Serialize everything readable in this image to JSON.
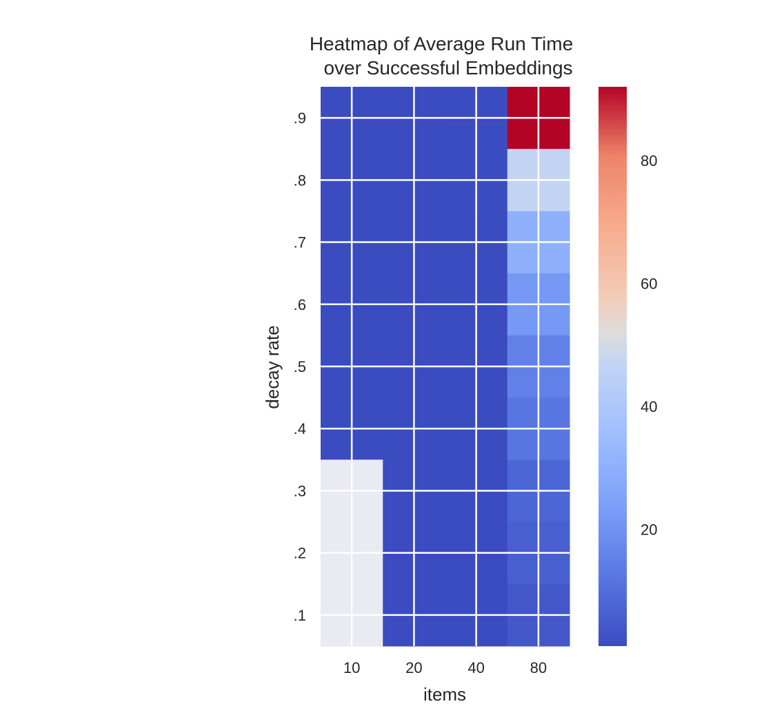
{
  "chart_data": {
    "type": "heatmap",
    "title_lines": [
      "Heatmap of Average Run Time",
      "over Successful Embeddings"
    ],
    "xlabel": "items",
    "ylabel": "decay rate",
    "x_categories": [
      "10",
      "20",
      "40",
      "80"
    ],
    "y_categories": [
      ".9",
      ".8",
      ".7",
      ".6",
      ".5",
      ".4",
      ".3",
      ".2",
      ".1"
    ],
    "values": [
      [
        1.0,
        1.0,
        1.3,
        92.0
      ],
      [
        1.0,
        1.0,
        1.2,
        47.0
      ],
      [
        1.0,
        1.0,
        1.1,
        30.0
      ],
      [
        1.0,
        1.0,
        1.1,
        22.0
      ],
      [
        1.0,
        1.0,
        1.0,
        15.0
      ],
      [
        1.0,
        1.0,
        1.0,
        12.0
      ],
      [
        null,
        1.0,
        1.0,
        8.0
      ],
      [
        null,
        1.0,
        1.0,
        6.0
      ],
      [
        null,
        1.0,
        1.0,
        4.0
      ]
    ],
    "missing_color": "#eaeaf2",
    "colormap": "coolwarm",
    "vmin": 1.0,
    "vmax": 92.0,
    "colorbar_ticks": [
      "20",
      "40",
      "60",
      "80"
    ],
    "colorbar_tick_values": [
      20,
      40,
      60,
      80
    ],
    "grid": true,
    "grid_color": "#ffffff"
  }
}
